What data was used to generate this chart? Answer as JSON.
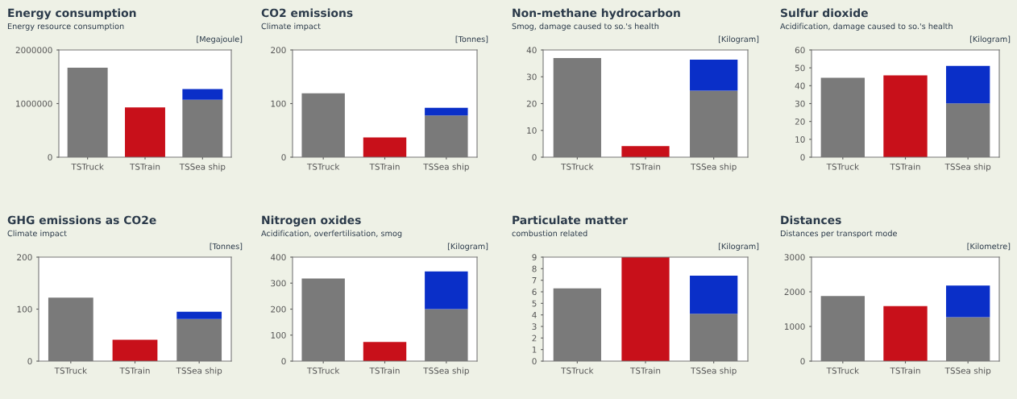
{
  "chart_data": [
    {
      "type": "bar",
      "title": "Energy consumption",
      "subtitle": "Energy resource consumption",
      "ylabel": "[Megajoule]",
      "categories": [
        "TSTruck",
        "TSTrain",
        "TSSea ship"
      ],
      "stacked": true,
      "ylim": [
        0,
        2000000
      ],
      "yticks": [
        0,
        1000000,
        2000000
      ],
      "series": [
        {
          "colors": [
            "#7a7a7a",
            "#c8101a",
            "#7a7a7a"
          ],
          "values": [
            1670000,
            930000,
            1070000
          ]
        },
        {
          "color": "#0a2fc8",
          "values": [
            null,
            null,
            200000
          ]
        }
      ]
    },
    {
      "type": "bar",
      "title": "CO2 emissions",
      "subtitle": "Climate impact",
      "ylabel": "[Tonnes]",
      "categories": [
        "TSTruck",
        "TSTrain",
        "TSSea ship"
      ],
      "stacked": true,
      "ylim": [
        0,
        200
      ],
      "yticks": [
        0,
        100,
        200
      ],
      "series": [
        {
          "colors": [
            "#7a7a7a",
            "#c8101a",
            "#7a7a7a"
          ],
          "values": [
            119,
            37,
            78
          ]
        },
        {
          "color": "#0a2fc8",
          "values": [
            null,
            null,
            14
          ]
        }
      ]
    },
    {
      "type": "bar",
      "title": "Non-methane hydrocarbon",
      "subtitle": "Smog, damage caused to so.'s health",
      "ylabel": "[Kilogram]",
      "categories": [
        "TSTruck",
        "TSTrain",
        "TSSea ship"
      ],
      "stacked": true,
      "ylim": [
        0,
        40
      ],
      "yticks": [
        0,
        10,
        20,
        30,
        40
      ],
      "series": [
        {
          "colors": [
            "#7a7a7a",
            "#c8101a",
            "#7a7a7a"
          ],
          "values": [
            37,
            4.1,
            24.8
          ]
        },
        {
          "color": "#0a2fc8",
          "values": [
            null,
            null,
            11.6
          ]
        }
      ]
    },
    {
      "type": "bar",
      "title": "Sulfur dioxide",
      "subtitle": "Acidification, damage caused to so.'s health",
      "ylabel": "[Kilogram]",
      "categories": [
        "TSTruck",
        "TSTrain",
        "TSSea ship"
      ],
      "stacked": true,
      "ylim": [
        0,
        60
      ],
      "yticks": [
        0,
        10,
        20,
        30,
        40,
        50,
        60
      ],
      "series": [
        {
          "colors": [
            "#7a7a7a",
            "#c8101a",
            "#7a7a7a"
          ],
          "values": [
            44.4,
            45.8,
            30.1
          ]
        },
        {
          "color": "#0a2fc8",
          "values": [
            null,
            null,
            21
          ]
        }
      ]
    },
    {
      "type": "bar",
      "title": "GHG emissions as CO2e",
      "subtitle": "Climate impact",
      "ylabel": "[Tonnes]",
      "categories": [
        "TSTruck",
        "TSTrain",
        "TSSea ship"
      ],
      "stacked": true,
      "ylim": [
        0,
        200
      ],
      "yticks": [
        0,
        100,
        200
      ],
      "series": [
        {
          "colors": [
            "#7a7a7a",
            "#c8101a",
            "#7a7a7a"
          ],
          "values": [
            122,
            41,
            81
          ]
        },
        {
          "color": "#0a2fc8",
          "values": [
            null,
            null,
            14
          ]
        }
      ]
    },
    {
      "type": "bar",
      "title": "Nitrogen oxides",
      "subtitle": "Acidification, overfertilisation, smog",
      "ylabel": "[Kilogram]",
      "categories": [
        "TSTruck",
        "TSTrain",
        "TSSea ship"
      ],
      "stacked": true,
      "ylim": [
        0,
        400
      ],
      "yticks": [
        0,
        100,
        200,
        300,
        400
      ],
      "series": [
        {
          "colors": [
            "#7a7a7a",
            "#c8101a",
            "#7a7a7a"
          ],
          "values": [
            318,
            74,
            200
          ]
        },
        {
          "color": "#0a2fc8",
          "values": [
            null,
            null,
            145
          ]
        }
      ]
    },
    {
      "type": "bar",
      "title": "Particulate matter",
      "subtitle": "combustion related",
      "ylabel": "[Kilogram]",
      "categories": [
        "TSTruck",
        "TSTrain",
        "TSSea ship"
      ],
      "stacked": true,
      "ylim": [
        0,
        9
      ],
      "yticks": [
        0,
        1,
        2,
        3,
        4,
        5,
        6,
        7,
        8,
        9
      ],
      "series": [
        {
          "colors": [
            "#7a7a7a",
            "#c8101a",
            "#7a7a7a"
          ],
          "values": [
            6.3,
            9,
            4.1
          ]
        },
        {
          "color": "#0a2fc8",
          "values": [
            null,
            null,
            3.3
          ]
        }
      ]
    },
    {
      "type": "bar",
      "title": "Distances",
      "subtitle": "Distances per transport mode",
      "ylabel": "[Kilometre]",
      "categories": [
        "TSTruck",
        "TSTrain",
        "TSSea ship"
      ],
      "stacked": true,
      "ylim": [
        0,
        3000
      ],
      "yticks": [
        0,
        1000,
        2000,
        3000
      ],
      "series": [
        {
          "colors": [
            "#7a7a7a",
            "#c8101a",
            "#7a7a7a"
          ],
          "values": [
            1880,
            1590,
            1270
          ]
        },
        {
          "color": "#0a2fc8",
          "values": [
            null,
            null,
            910
          ]
        }
      ]
    }
  ]
}
